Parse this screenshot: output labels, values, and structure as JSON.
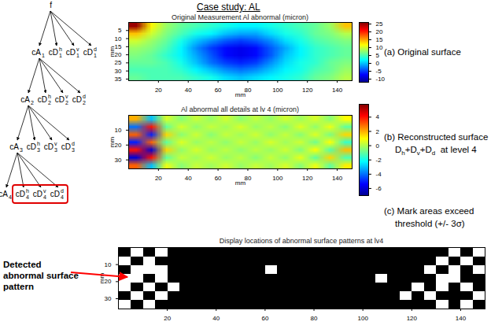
{
  "title": "Case study: AL",
  "tree": {
    "label": "f",
    "children": [
      {
        "label": "cA",
        "sub": "1",
        "children": [
          {
            "label": "cA",
            "sub": "2",
            "children": [
              {
                "label": "cA",
                "sub": "3",
                "children": [
                  {
                    "label": "cA",
                    "sub": "4"
                  },
                  {
                    "label": "cD",
                    "sub": "4",
                    "sup": "h",
                    "highlighted": true
                  },
                  {
                    "label": "cD",
                    "sub": "4",
                    "sup": "v",
                    "highlighted": true
                  },
                  {
                    "label": "cD",
                    "sub": "4",
                    "sup": "d",
                    "highlighted": true
                  }
                ]
              },
              {
                "label": "cD",
                "sub": "3",
                "sup": "h"
              },
              {
                "label": "cD",
                "sub": "3",
                "sup": "v"
              },
              {
                "label": "cD",
                "sub": "3",
                "sup": "d"
              }
            ]
          },
          {
            "label": "cD",
            "sub": "2",
            "sup": "h"
          },
          {
            "label": "cD",
            "sub": "2",
            "sup": "v"
          },
          {
            "label": "cD",
            "sub": "2",
            "sup": "d"
          }
        ]
      },
      {
        "label": "cD",
        "sub": "1",
        "sup": "h"
      },
      {
        "label": "cD",
        "sub": "1",
        "sup": "v"
      },
      {
        "label": "cD",
        "sub": "1",
        "sup": "d"
      }
    ]
  },
  "annotation": {
    "text": "Detected abnormal surface pattern",
    "color": "red"
  },
  "chart_data": [
    {
      "type": "heatmap",
      "title": "Original Measurement Al abnormal (micron)",
      "caption": [
        [
          {
            "text": "(a) Original surface"
          }
        ]
      ],
      "xlabel": "mm",
      "ylabel": "mm",
      "xlim": [
        0,
        150
      ],
      "ylim": [
        0,
        36
      ],
      "xticks": [
        20,
        40,
        60,
        80,
        100,
        120,
        140
      ],
      "yticks": [
        5,
        10,
        15,
        20,
        25,
        30,
        35
      ],
      "color": "jet",
      "colorbar": {
        "lim": [
          -12,
          26
        ],
        "ticks": [
          -10,
          -5,
          0,
          5,
          10,
          15,
          20,
          25
        ]
      },
      "cells": [
        [
          25,
          12,
          8,
          6,
          5,
          4,
          3,
          2,
          2,
          3,
          4,
          5,
          6,
          8,
          14
        ],
        [
          14,
          10,
          7,
          5,
          3,
          2,
          0,
          -1,
          -1,
          1,
          3,
          4,
          6,
          7,
          9
        ],
        [
          10,
          8,
          6,
          3,
          0,
          -2,
          -4,
          -5,
          -4,
          -2,
          1,
          3,
          5,
          6,
          7
        ],
        [
          8,
          7,
          5,
          2,
          -2,
          -5,
          -7,
          -8,
          -7,
          -4,
          -1,
          2,
          4,
          5,
          6
        ],
        [
          7,
          6,
          4,
          2,
          -1,
          -4,
          -7,
          -8,
          -7,
          -4,
          0,
          2,
          4,
          5,
          6
        ],
        [
          6,
          6,
          5,
          3,
          0,
          -3,
          -5,
          -6,
          -5,
          -2,
          1,
          3,
          4,
          6,
          7
        ],
        [
          5,
          5,
          5,
          4,
          2,
          0,
          -2,
          -3,
          -2,
          0,
          2,
          3,
          5,
          6,
          8
        ],
        [
          6,
          5,
          5,
          5,
          4,
          3,
          1,
          0,
          1,
          2,
          3,
          4,
          6,
          7,
          9
        ]
      ]
    },
    {
      "type": "heatmap",
      "title": "Al abnormal all details at lv 4 (micron)",
      "caption": [
        [
          {
            "text": "(b) Reconstructed surface"
          }
        ],
        [
          {
            "text": "D"
          },
          {
            "text": "h",
            "sub": true
          },
          {
            "text": "+D"
          },
          {
            "text": "v",
            "sub": true
          },
          {
            "text": "+D"
          },
          {
            "text": "d",
            "sub": true
          },
          {
            "text": "  at level 4"
          }
        ]
      ],
      "ylabel": "mm",
      "xlabel": "mm",
      "xlim": [
        0,
        150
      ],
      "ylim": [
        0,
        36
      ],
      "xticks": [
        20,
        40,
        60,
        80,
        100,
        120,
        140
      ],
      "yticks": [
        10,
        20,
        30
      ],
      "color": "jet",
      "colorbar": {
        "lim": [
          -7,
          5.8
        ],
        "ticks": [
          -6,
          -4,
          -2,
          0,
          2,
          4
        ]
      },
      "cells": [
        [
          2,
          -3,
          0.5,
          -0.5,
          0.3,
          -0.3,
          0.4,
          -0.4,
          0.2,
          -0.3,
          0.4,
          -0.2,
          0.5,
          -0.5,
          1
        ],
        [
          -4,
          4,
          -1,
          0.5,
          -0.4,
          0.3,
          -0.2,
          0.5,
          -0.3,
          0.2,
          -0.5,
          0.6,
          -0.4,
          0.8,
          -1
        ],
        [
          3,
          -5,
          1.5,
          -0.5,
          0.4,
          -0.5,
          0.3,
          -0.2,
          0.4,
          -0.4,
          0.3,
          -0.5,
          0.6,
          -0.7,
          1.5
        ],
        [
          -5,
          3,
          -1,
          0.6,
          -0.3,
          0.2,
          -0.4,
          0.3,
          -0.3,
          0.5,
          -0.2,
          0.4,
          -0.8,
          1,
          -1.5
        ],
        [
          4,
          -6,
          1.5,
          -0.4,
          0.5,
          -0.3,
          0.2,
          -0.4,
          0.2,
          -0.3,
          0.4,
          -0.6,
          1,
          -1.2,
          1.8
        ],
        [
          -6,
          4,
          -1,
          0.3,
          -0.2,
          0.4,
          -0.3,
          0.2,
          -0.5,
          0.3,
          -0.4,
          0.7,
          -1,
          1.5,
          -1.2
        ],
        [
          3,
          -3,
          0.8,
          -0.5,
          0.3,
          -0.2,
          0.4,
          -0.3,
          0.3,
          -0.2,
          0.5,
          -0.5,
          0.8,
          -1,
          1.2
        ]
      ]
    },
    {
      "type": "heatmap",
      "title": "Display locations of abnormal surface patterns at lv4",
      "caption": [
        [
          {
            "text": "(c) Mark areas exceed"
          }
        ],
        [
          {
            "text": "threshold (+/- 3σ)"
          }
        ]
      ],
      "ylabel": "mm",
      "xlim": [
        0,
        150
      ],
      "ylim": [
        0,
        36
      ],
      "xticks": [
        20,
        40,
        60,
        80,
        100,
        120,
        140
      ],
      "yticks": [
        10,
        20,
        30
      ],
      "colors": [
        "#000000",
        "#ffffff"
      ],
      "cells": [
        [
          0,
          1,
          0,
          1,
          0,
          0,
          0,
          0,
          0,
          0,
          0,
          0,
          0,
          0,
          0,
          0,
          0,
          0,
          0,
          0,
          0,
          0,
          0,
          0,
          0,
          0,
          0,
          1,
          0,
          1
        ],
        [
          1,
          0,
          1,
          0,
          0,
          0,
          0,
          0,
          0,
          0,
          0,
          0,
          0,
          0,
          0,
          0,
          0,
          0,
          0,
          0,
          0,
          0,
          0,
          0,
          0,
          0,
          1,
          0,
          1,
          0
        ],
        [
          0,
          1,
          1,
          1,
          0,
          0,
          0,
          0,
          0,
          0,
          0,
          0,
          1,
          0,
          0,
          0,
          0,
          0,
          0,
          0,
          0,
          0,
          0,
          0,
          0,
          1,
          0,
          1,
          0,
          1
        ],
        [
          1,
          1,
          0,
          1,
          0,
          0,
          0,
          0,
          0,
          0,
          0,
          0,
          0,
          0,
          0,
          0,
          0,
          0,
          0,
          0,
          0,
          1,
          0,
          0,
          0,
          0,
          1,
          1,
          0,
          0
        ],
        [
          1,
          0,
          1,
          0,
          1,
          0,
          0,
          0,
          0,
          0,
          0,
          0,
          0,
          0,
          0,
          0,
          0,
          0,
          0,
          0,
          0,
          0,
          0,
          0,
          1,
          0,
          1,
          0,
          1,
          0
        ],
        [
          0,
          1,
          0,
          1,
          0,
          0,
          0,
          0,
          0,
          0,
          0,
          0,
          0,
          0,
          0,
          0,
          0,
          0,
          0,
          0,
          0,
          0,
          0,
          1,
          0,
          1,
          0,
          0,
          0,
          1
        ],
        [
          1,
          0,
          1,
          0,
          0,
          0,
          0,
          0,
          0,
          0,
          0,
          0,
          0,
          0,
          0,
          0,
          0,
          0,
          0,
          0,
          0,
          0,
          0,
          0,
          0,
          0,
          1,
          0,
          1,
          0
        ]
      ]
    }
  ]
}
